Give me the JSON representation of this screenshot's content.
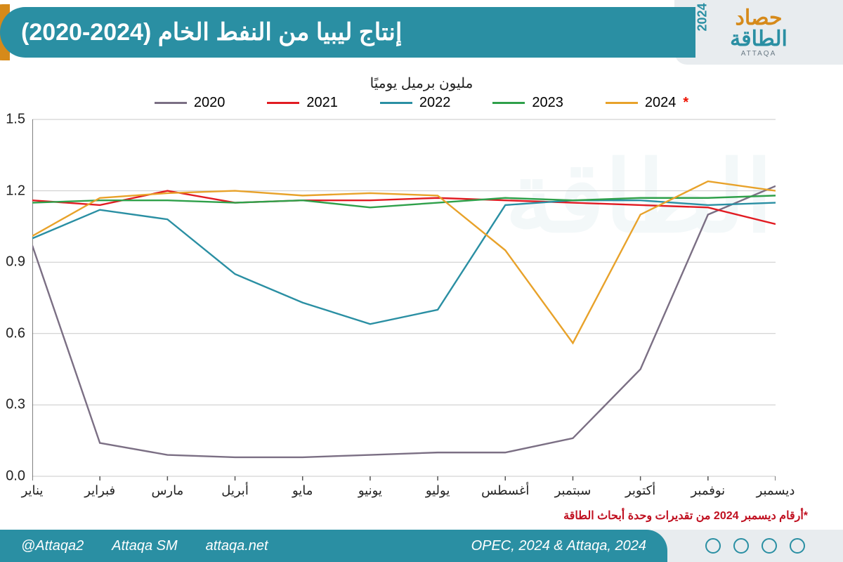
{
  "header": {
    "logo": {
      "line1": "حصاد",
      "line2": "الطاقة",
      "sub": "ATTAQA",
      "year": "2024"
    },
    "title": "إنتاج ليبيا من النفط الخام (2024-2020)"
  },
  "chart": {
    "type": "line",
    "subtitle": "مليون برميل يوميًا",
    "x_categories": [
      "يناير",
      "فبراير",
      "مارس",
      "أبريل",
      "مايو",
      "يونيو",
      "يوليو",
      "أغسطس",
      "سبتمبر",
      "أكتوبر",
      "نوفمبر",
      "ديسمبر"
    ],
    "ylim": [
      0.0,
      1.5
    ],
    "yticks": [
      0.0,
      0.3,
      0.6,
      0.9,
      1.2,
      1.5
    ],
    "ytick_labels": [
      "0.0",
      "0.3",
      "0.6",
      "0.9",
      "1.2",
      "1.5"
    ],
    "grid_color": "#c9c9c9",
    "axis_color": "#555555",
    "background_color": "#ffffff",
    "line_width": 2.4,
    "label_fontsize": 20,
    "tick_fontsize": 20,
    "series": [
      {
        "name": "2020",
        "color": "#7b6f84",
        "marker_last": false,
        "values": [
          0.97,
          0.14,
          0.09,
          0.08,
          0.08,
          0.09,
          0.1,
          0.1,
          0.16,
          0.45,
          1.1,
          1.22
        ]
      },
      {
        "name": "2021",
        "color": "#e11b22",
        "marker_last": false,
        "values": [
          1.16,
          1.14,
          1.2,
          1.15,
          1.16,
          1.16,
          1.17,
          1.16,
          1.15,
          1.14,
          1.13,
          1.06
        ]
      },
      {
        "name": "2022",
        "color": "#2a8fa3",
        "marker_last": false,
        "values": [
          1.0,
          1.12,
          1.08,
          0.85,
          0.73,
          0.64,
          0.7,
          1.14,
          1.16,
          1.16,
          1.14,
          1.15
        ]
      },
      {
        "name": "2023",
        "color": "#2fa04a",
        "marker_last": false,
        "values": [
          1.15,
          1.16,
          1.16,
          1.15,
          1.16,
          1.13,
          1.15,
          1.17,
          1.16,
          1.17,
          1.17,
          1.18
        ]
      },
      {
        "name": "2024",
        "color": "#e8a22a",
        "marker_last": true,
        "star": true,
        "values": [
          1.01,
          1.17,
          1.19,
          1.2,
          1.18,
          1.19,
          1.18,
          0.95,
          0.56,
          1.1,
          1.24,
          1.2
        ]
      }
    ],
    "footnote": "*أرقام ديسمبر 2024 من تقديرات وحدة أبحاث الطاقة"
  },
  "footer": {
    "handle1": "@Attaqa2",
    "handle2": "Attaqa SM",
    "site": "attaqa.net",
    "source": "OPEC, 2024 & Attaqa, 2024"
  }
}
